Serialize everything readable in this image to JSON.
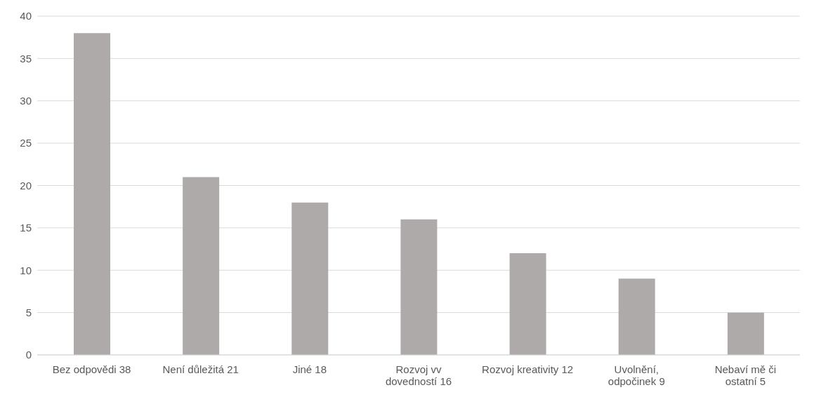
{
  "chart_data": {
    "type": "bar",
    "categories": [
      "Bez odpovědi 38",
      "Není důležitá 21",
      "Jiné 18",
      "Rozvoj vv dovedností 16",
      "Rozvoj kreativity 12",
      "Uvolnění, odpočinek 9",
      "Nebaví mě či ostatní 5"
    ],
    "values": [
      38,
      21,
      18,
      16,
      12,
      9,
      5
    ],
    "color": "#aeaaaa",
    "ylim": [
      0,
      40
    ],
    "yticks": [
      0,
      5,
      10,
      15,
      20,
      25,
      30,
      35,
      40
    ],
    "grid": "y",
    "legend": false
  }
}
